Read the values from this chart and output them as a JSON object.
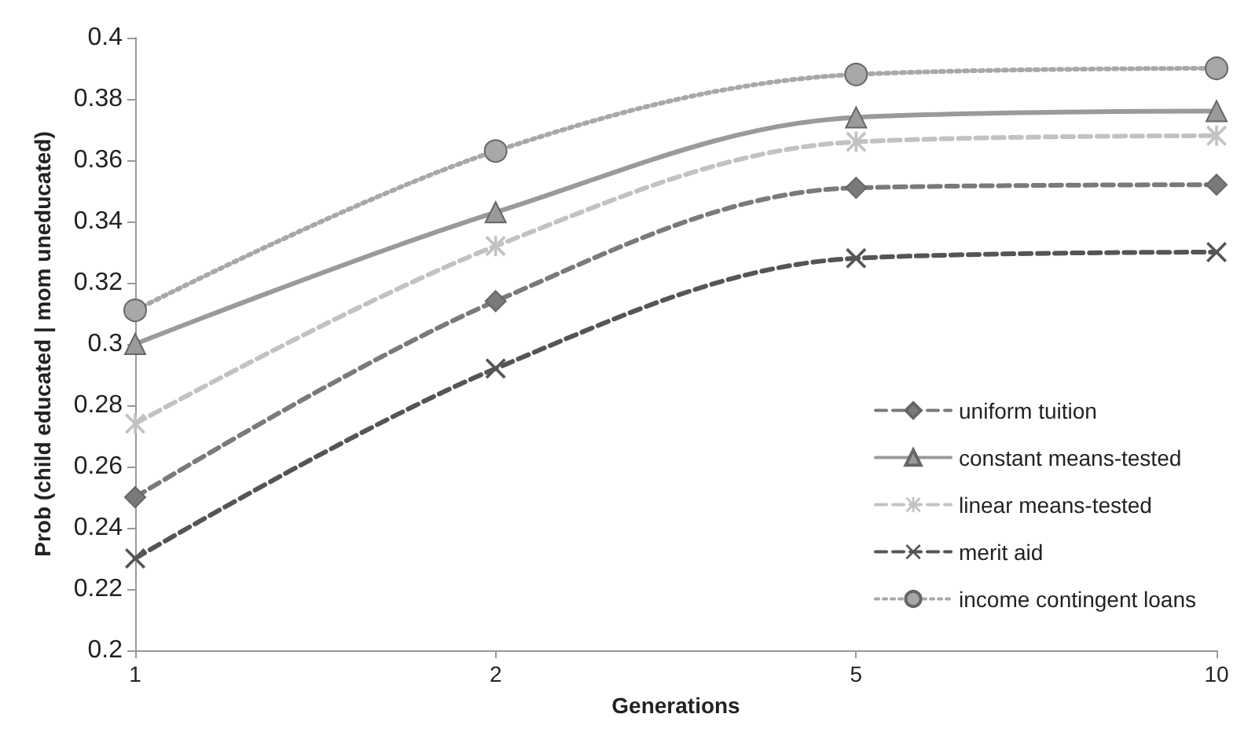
{
  "chart_data": {
    "type": "line",
    "xlabel": "Generations",
    "ylabel": "Prob (child educated | mom uneducated)",
    "categories": [
      "1",
      "2",
      "5",
      "10"
    ],
    "series": [
      {
        "name": "uniform tuition",
        "color": "#7a7a7a",
        "values": [
          0.25,
          0.314,
          0.351,
          0.352
        ],
        "marker": "diamond",
        "line_style": "dashed"
      },
      {
        "name": "constant means-tested",
        "color": "#9a9a9a",
        "values": [
          0.3,
          0.343,
          0.374,
          0.376
        ],
        "marker": "triangle",
        "line_style": "solid"
      },
      {
        "name": "linear means-tested",
        "color": "#c2c2c2",
        "values": [
          0.274,
          0.332,
          0.366,
          0.368
        ],
        "marker": "star",
        "line_style": "dashed"
      },
      {
        "name": "merit aid",
        "color": "#555555",
        "values": [
          0.23,
          0.292,
          0.328,
          0.33
        ],
        "marker": "cross",
        "line_style": "dashed"
      },
      {
        "name": "income contingent loans",
        "color": "#a8a8a8",
        "values": [
          0.311,
          0.363,
          0.388,
          0.39
        ],
        "marker": "circle",
        "line_style": "dotted"
      }
    ],
    "ylim": [
      0.2,
      0.4
    ],
    "yticks": [
      0.2,
      0.22,
      0.24,
      0.26,
      0.28,
      0.3,
      0.32,
      0.34,
      0.36,
      0.38,
      0.4
    ],
    "grid": false,
    "legend": "right"
  }
}
